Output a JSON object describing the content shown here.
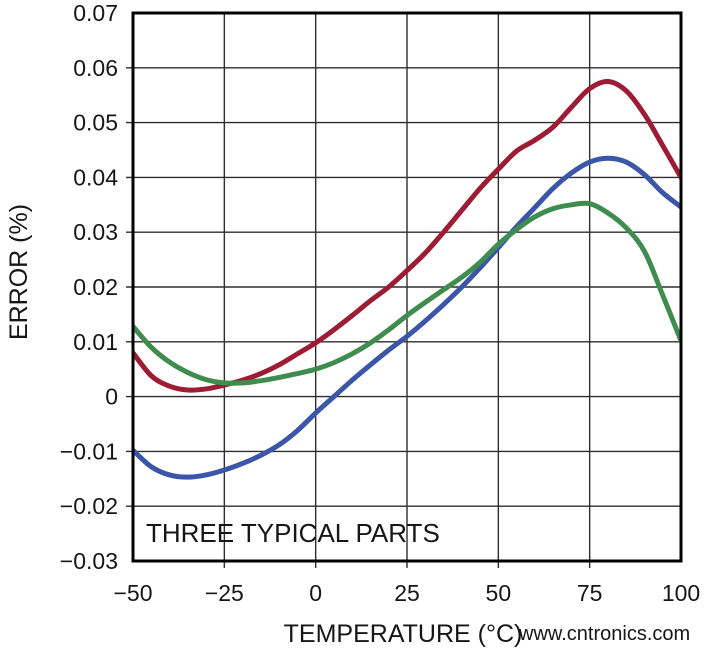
{
  "page": {
    "background": "#ffffff",
    "text_color": "#161616"
  },
  "watermark": {
    "text": "www.cntronics.com",
    "color": "#a9d9ad"
  },
  "chart_data": {
    "type": "line",
    "title": "",
    "xlabel": "TEMPERATURE (°C)",
    "ylabel": "ERROR (%)",
    "annotation": "THREE TYPICAL PARTS",
    "legend": "none",
    "grid": true,
    "xlim": [
      -50,
      100
    ],
    "ylim": [
      -0.03,
      0.07
    ],
    "x_tick_values": [
      -50,
      -25,
      0,
      25,
      50,
      75,
      100
    ],
    "x_tick_labels": [
      "−50",
      "−25",
      "0",
      "25",
      "50",
      "75",
      "100"
    ],
    "y_tick_values": [
      0.07,
      0.06,
      0.05,
      0.04,
      0.03,
      0.02,
      0.01,
      0,
      -0.01,
      -0.02,
      -0.03
    ],
    "y_tick_labels": [
      "0.07",
      "0.06",
      "0.05",
      "0.04",
      "0.03",
      "0.02",
      "0.01",
      "0",
      "−0.01",
      "−0.02",
      "−0.03"
    ],
    "axis_color": "#000000",
    "grid_color": "#2e2e2e",
    "x": [
      -50,
      -45,
      -40,
      -35,
      -30,
      -25,
      -20,
      -15,
      -10,
      -5,
      0,
      5,
      10,
      15,
      20,
      25,
      30,
      35,
      40,
      45,
      50,
      55,
      60,
      65,
      70,
      75,
      80,
      85,
      90,
      95,
      100
    ],
    "series": [
      {
        "name": "typical-part-1-red",
        "color": "#9d1b33",
        "values": [
          0.008,
          0.0038,
          0.0019,
          0.0012,
          0.0014,
          0.0021,
          0.003,
          0.0042,
          0.0058,
          0.0078,
          0.0098,
          0.0122,
          0.0148,
          0.0175,
          0.02,
          0.023,
          0.0262,
          0.03,
          0.034,
          0.038,
          0.0415,
          0.0448,
          0.0468,
          0.0492,
          0.0528,
          0.0562,
          0.0575,
          0.0558,
          0.0515,
          0.0458,
          0.04
        ]
      },
      {
        "name": "typical-part-2-blue",
        "color": "#3b56a8",
        "values": [
          -0.0098,
          -0.0128,
          -0.0143,
          -0.0147,
          -0.0143,
          -0.0134,
          -0.0122,
          -0.0107,
          -0.0088,
          -0.0062,
          -0.003,
          0.0,
          0.003,
          0.0058,
          0.0085,
          0.011,
          0.0138,
          0.0168,
          0.02,
          0.0235,
          0.0272,
          0.031,
          0.0345,
          0.038,
          0.0408,
          0.0428,
          0.0435,
          0.0428,
          0.0405,
          0.0372,
          0.0346
        ]
      },
      {
        "name": "typical-part-3-green",
        "color": "#3f8d4e",
        "values": [
          0.0128,
          0.009,
          0.0063,
          0.0044,
          0.0031,
          0.0025,
          0.0025,
          0.0029,
          0.0035,
          0.0042,
          0.005,
          0.0062,
          0.0078,
          0.0098,
          0.0122,
          0.0148,
          0.0172,
          0.0195,
          0.0218,
          0.0245,
          0.0278,
          0.0305,
          0.0328,
          0.0343,
          0.035,
          0.0352,
          0.0335,
          0.0308,
          0.0265,
          0.0185,
          0.0102
        ]
      }
    ]
  }
}
